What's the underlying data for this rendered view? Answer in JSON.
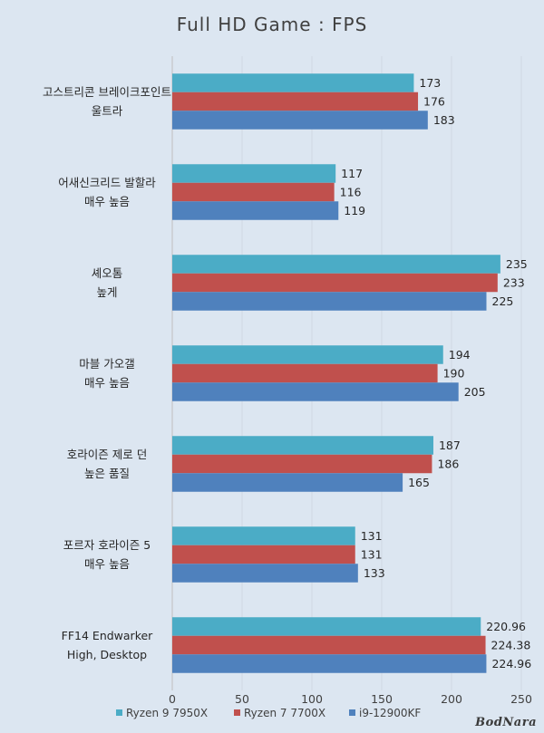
{
  "chart_data": {
    "type": "bar",
    "orientation": "horizontal",
    "title": "Full HD Game : FPS",
    "xlabel": "",
    "ylabel": "",
    "xlim": [
      0,
      250
    ],
    "xticks": [
      0,
      50,
      100,
      150,
      200,
      250
    ],
    "grid": true,
    "legend_position": "bottom",
    "categories": [
      [
        "고스트리콘 브레이크포인트",
        "울트라"
      ],
      [
        "어새신크리드 발할라",
        "매우 높음"
      ],
      [
        "셰오톰",
        "높게"
      ],
      [
        "마블 가오갤",
        "매우 높음"
      ],
      [
        "호라이즌 제로 던",
        "높은 품질"
      ],
      [
        "포르자 호라이즌 5",
        "매우 높음"
      ],
      [
        "FF14 Endwarker",
        "High, Desktop"
      ]
    ],
    "series": [
      {
        "name": "Ryzen 9 7950X",
        "color": "#4bacc6",
        "values": [
          173,
          117,
          235,
          194,
          187,
          131,
          220.96
        ],
        "labels": [
          "173",
          "117",
          "235",
          "194",
          "187",
          "131",
          "220.96"
        ]
      },
      {
        "name": "Ryzen 7 7700X",
        "color": "#c0504d",
        "values": [
          176,
          116,
          233,
          190,
          186,
          131,
          224.38
        ],
        "labels": [
          "176",
          "116",
          "233",
          "190",
          "186",
          "131",
          "224.38"
        ]
      },
      {
        "name": "i9-12900KF",
        "color": "#4f81bd",
        "values": [
          183,
          119,
          225,
          205,
          165,
          133,
          224.96
        ],
        "labels": [
          "183",
          "119",
          "225",
          "205",
          "165",
          "133",
          "224.96"
        ]
      }
    ]
  },
  "watermark": "BodNara"
}
